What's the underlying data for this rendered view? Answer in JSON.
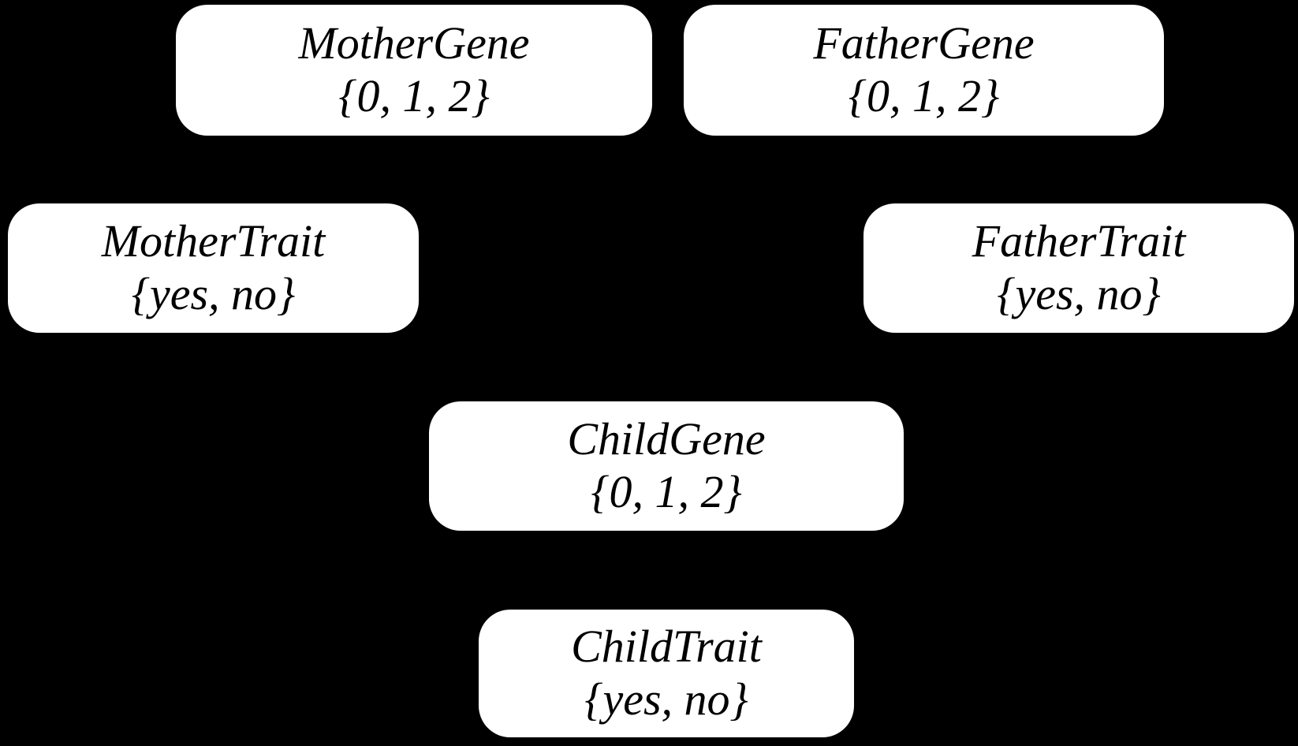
{
  "diagram": {
    "type": "bayesian-network",
    "background_color": "#000000",
    "node_fill_color": "#ffffff",
    "node_text_color": "#000000",
    "nodes": [
      {
        "id": "mother-gene",
        "name": "MotherGene",
        "domain": "{0, 1, 2}"
      },
      {
        "id": "father-gene",
        "name": "FatherGene",
        "domain": "{0, 1, 2}"
      },
      {
        "id": "mother-trait",
        "name": "MotherTrait",
        "domain": "{yes, no}"
      },
      {
        "id": "father-trait",
        "name": "FatherTrait",
        "domain": "{yes, no}"
      },
      {
        "id": "child-gene",
        "name": "ChildGene",
        "domain": "{0, 1, 2}"
      },
      {
        "id": "child-trait",
        "name": "ChildTrait",
        "domain": "{yes, no}"
      }
    ]
  }
}
